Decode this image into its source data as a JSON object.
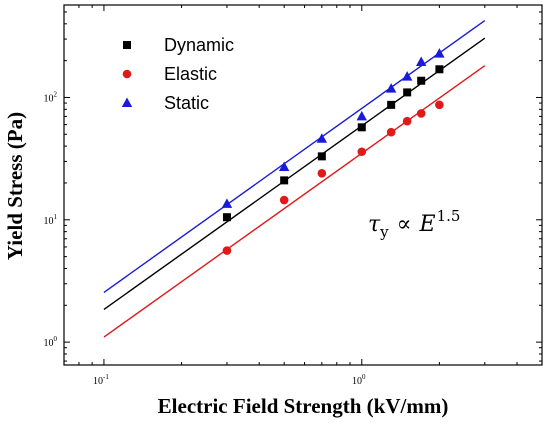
{
  "chart_data": {
    "type": "scatter",
    "xlabel": "Electric Field Strength (kV/mm)",
    "ylabel": "Yield Stress (Pa)",
    "x_scale": "log",
    "y_scale": "log",
    "xlim": [
      0.07,
      5
    ],
    "ylim": [
      0.65,
      570
    ],
    "x_ticks": [
      {
        "value": 0.1,
        "base": "10",
        "exp": "-1"
      },
      {
        "value": 1,
        "base": "10",
        "exp": "0"
      }
    ],
    "y_ticks": [
      {
        "value": 1,
        "base": "10",
        "exp": "0"
      },
      {
        "value": 10,
        "base": "10",
        "exp": "1"
      },
      {
        "value": 100,
        "base": "10",
        "exp": "2"
      }
    ],
    "legend_position": "top-left",
    "annotation": {
      "base": "τ",
      "subscript": "y",
      "operator": "∝",
      "var": "E",
      "power": "1.5"
    },
    "series": [
      {
        "name": "Dynamic",
        "marker": "square",
        "color": "#000000",
        "points": [
          [
            0.3,
            10.5
          ],
          [
            0.5,
            21
          ],
          [
            0.7,
            33
          ],
          [
            1.0,
            57
          ],
          [
            1.3,
            87
          ],
          [
            1.5,
            110
          ],
          [
            1.7,
            137
          ],
          [
            2.0,
            170
          ]
        ],
        "fit": {
          "x_range": [
            0.1,
            3.0
          ],
          "y_range": [
            1.85,
            305
          ]
        }
      },
      {
        "name": "Elastic",
        "marker": "circle",
        "color": "#e0191b",
        "points": [
          [
            0.3,
            5.6
          ],
          [
            0.5,
            14.5
          ],
          [
            0.7,
            24
          ],
          [
            1.0,
            36
          ],
          [
            1.3,
            52
          ],
          [
            1.5,
            64
          ],
          [
            1.7,
            74
          ],
          [
            2.0,
            87
          ]
        ],
        "fit": {
          "x_range": [
            0.1,
            3.0
          ],
          "y_range": [
            1.1,
            182
          ]
        }
      },
      {
        "name": "Static",
        "marker": "triangle",
        "color": "#1a1adb",
        "points": [
          [
            0.3,
            13.5
          ],
          [
            0.5,
            27
          ],
          [
            0.7,
            46
          ],
          [
            1.0,
            70
          ],
          [
            1.3,
            118
          ],
          [
            1.5,
            148
          ],
          [
            1.7,
            195
          ],
          [
            2.0,
            228
          ]
        ],
        "fit": {
          "x_range": [
            0.1,
            3.0
          ],
          "y_range": [
            2.55,
            425
          ]
        }
      }
    ]
  }
}
